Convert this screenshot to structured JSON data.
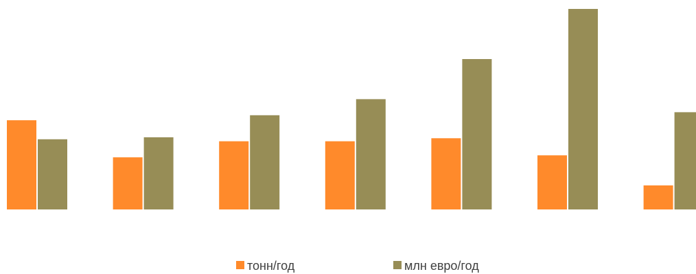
{
  "chart_data": {
    "type": "bar",
    "title": "",
    "xlabel": "",
    "ylabel": "",
    "categories": [
      "",
      "",
      "",
      "",
      "",
      "",
      ""
    ],
    "ylim": [
      0,
      100
    ],
    "grid": false,
    "legend_position": "bottom",
    "series": [
      {
        "name": "тонн/год",
        "color": "#FF8A2B",
        "values": [
          44.5,
          26,
          34,
          34,
          35.5,
          27,
          12
        ]
      },
      {
        "name": "млн евро/год",
        "color": "#978D56",
        "values": [
          35,
          36,
          47,
          55,
          75,
          100,
          48.5
        ]
      }
    ]
  }
}
